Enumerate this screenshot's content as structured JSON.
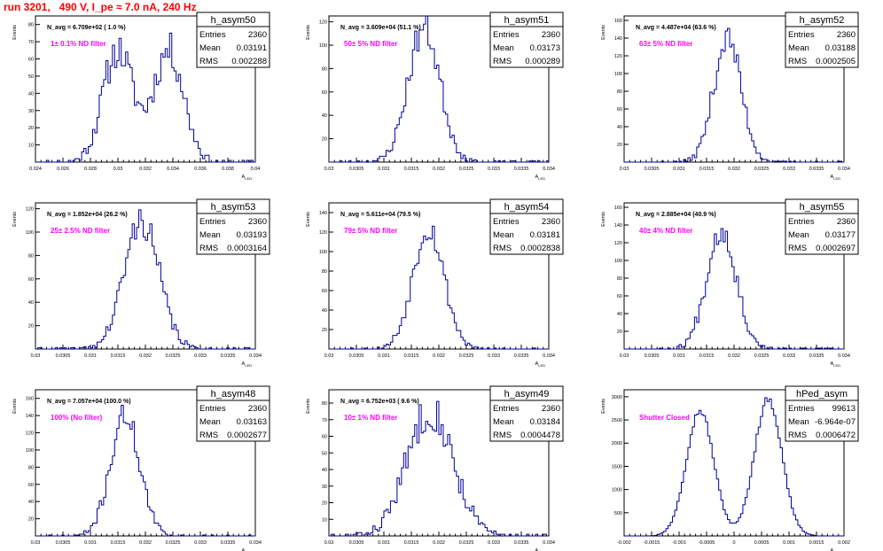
{
  "title": "run 3201,   490 V, I_pe ≈ 7.0 nA, 240 Hz",
  "colors": {
    "title": "#ff0000",
    "annotation": "#ff00ff",
    "histogram": "#000099",
    "axis": "#000000"
  },
  "chart_data": [
    {
      "type": "histogram",
      "name": "h_asym50",
      "entries": "2360",
      "mean": "0.03191",
      "rms": "0.002288",
      "navg": "N_avg = 6.709e+02 ( 1.0 %)",
      "note": "1± 0.1% ND filter",
      "ylabel": "Events",
      "xlabel": "A",
      "xlim": [
        0.024,
        0.04
      ],
      "ylim": [
        0,
        85
      ],
      "xticks": [
        "0.024",
        "0.026",
        "0.028",
        "0.03",
        "0.032",
        "0.034",
        "0.036",
        "0.038",
        "0.04"
      ],
      "yticks": [
        "10",
        "20",
        "30",
        "40",
        "50",
        "60",
        "70",
        "80"
      ],
      "peaks": [
        {
          "c": 0.03,
          "s": 0.0011,
          "a": 65
        },
        {
          "c": 0.0337,
          "s": 0.0011,
          "a": 65
        }
      ],
      "nbins": 100,
      "seed": 11
    },
    {
      "type": "histogram",
      "name": "h_asym51",
      "entries": "2360",
      "mean": "0.03173",
      "rms": "0.000289",
      "navg": "N_avg = 3.609e+04 (51.1 %)",
      "note": "50± 5% ND filter",
      "ylabel": "Events",
      "xlabel": "A",
      "xlim": [
        0.03,
        0.034
      ],
      "ylim": [
        0,
        125
      ],
      "xticks": [
        "0.03",
        "0.0305",
        "0.031",
        "0.0315",
        "0.032",
        "0.0325",
        "0.033",
        "0.0335",
        "0.034"
      ],
      "yticks": [
        "20",
        "40",
        "60",
        "80",
        "100",
        "120"
      ],
      "peaks": [
        {
          "c": 0.03173,
          "s": 0.000289,
          "a": 115
        }
      ],
      "nbins": 100,
      "seed": 23
    },
    {
      "type": "histogram",
      "name": "h_asym52",
      "entries": "2360",
      "mean": "0.03188",
      "rms": "0.0002505",
      "navg": "N_avg = 4.487e+04 (63.6 %)",
      "note": "63± 5% ND filter",
      "ylabel": "Events",
      "xlabel": "A",
      "xlim": [
        0.03,
        0.034
      ],
      "ylim": [
        0,
        165
      ],
      "xticks": [
        "0.03",
        "0.0305",
        "0.031",
        "0.0315",
        "0.032",
        "0.0325",
        "0.033",
        "0.0335",
        "0.034"
      ],
      "yticks": [
        "20",
        "40",
        "60",
        "80",
        "100",
        "120",
        "140",
        "160"
      ],
      "peaks": [
        {
          "c": 0.03188,
          "s": 0.00025,
          "a": 140
        }
      ],
      "nbins": 100,
      "seed": 37
    },
    {
      "type": "histogram",
      "name": "h_asym53",
      "entries": "2360",
      "mean": "0.03193",
      "rms": "0.0003164",
      "navg": "N_avg = 1.852e+04 (26.2 %)",
      "note": "25± 2.5% ND filter",
      "ylabel": "Events",
      "xlabel": "A",
      "xlim": [
        0.03,
        0.034
      ],
      "ylim": [
        0,
        125
      ],
      "xticks": [
        "0.03",
        "0.0305",
        "0.031",
        "0.0315",
        "0.032",
        "0.0325",
        "0.033",
        "0.0335",
        "0.034"
      ],
      "yticks": [
        "20",
        "40",
        "60",
        "80",
        "100",
        "120"
      ],
      "peaks": [
        {
          "c": 0.03193,
          "s": 0.000316,
          "a": 110
        }
      ],
      "nbins": 100,
      "seed": 41
    },
    {
      "type": "histogram",
      "name": "h_asym54",
      "entries": "2360",
      "mean": "0.03181",
      "rms": "0.0002838",
      "navg": "N_avg = 5.611e+04 (79.5 %)",
      "note": "79± 5% ND filter",
      "ylabel": "Events",
      "xlabel": "A",
      "xlim": [
        0.03,
        0.034
      ],
      "ylim": [
        0,
        150
      ],
      "xticks": [
        "0.03",
        "0.0305",
        "0.031",
        "0.0315",
        "0.032",
        "0.0325",
        "0.033",
        "0.0335",
        "0.034"
      ],
      "yticks": [
        "20",
        "40",
        "60",
        "80",
        "100",
        "120",
        "140"
      ],
      "peaks": [
        {
          "c": 0.03181,
          "s": 0.000284,
          "a": 125
        }
      ],
      "nbins": 100,
      "seed": 53
    },
    {
      "type": "histogram",
      "name": "h_asym55",
      "entries": "2360",
      "mean": "0.03177",
      "rms": "0.0002697",
      "navg": "N_avg = 2.885e+04 (40.9 %)",
      "note": "40± 4% ND filter",
      "ylabel": "Events",
      "xlabel": "A",
      "xlim": [
        0.03,
        0.034
      ],
      "ylim": [
        0,
        165
      ],
      "xticks": [
        "0.03",
        "0.0305",
        "0.031",
        "0.0315",
        "0.032",
        "0.0325",
        "0.033",
        "0.0335",
        "0.034"
      ],
      "yticks": [
        "20",
        "40",
        "60",
        "80",
        "100",
        "120",
        "140",
        "160"
      ],
      "peaks": [
        {
          "c": 0.03177,
          "s": 0.00027,
          "a": 135
        }
      ],
      "nbins": 100,
      "seed": 67
    },
    {
      "type": "histogram",
      "name": "h_asym48",
      "entries": "2360",
      "mean": "0.03163",
      "rms": "0.0002677",
      "navg": "N_avg = 7.057e+04 (100.0 %)",
      "note": "100% (No filter)",
      "ylabel": "Events",
      "xlabel": "A",
      "xlim": [
        0.03,
        0.034
      ],
      "ylim": [
        0,
        170
      ],
      "xticks": [
        "0.03",
        "0.0305",
        "0.031",
        "0.0315",
        "0.032",
        "0.0325",
        "0.033",
        "0.0335",
        "0.034"
      ],
      "yticks": [
        "20",
        "40",
        "60",
        "80",
        "100",
        "120",
        "140",
        "160"
      ],
      "peaks": [
        {
          "c": 0.03163,
          "s": 0.000268,
          "a": 140
        }
      ],
      "nbins": 100,
      "seed": 71
    },
    {
      "type": "histogram",
      "name": "h_asym49",
      "entries": "2360",
      "mean": "0.03184",
      "rms": "0.0004478",
      "navg": "N_avg = 6.752e+03 ( 9.6 %)",
      "note": "10± 1% ND filter",
      "ylabel": "Events",
      "xlabel": "A",
      "xlim": [
        0.03,
        0.034
      ],
      "ylim": [
        0,
        88
      ],
      "xticks": [
        "0.03",
        "0.0305",
        "0.031",
        "0.0315",
        "0.032",
        "0.0325",
        "0.033",
        "0.0335",
        "0.034"
      ],
      "yticks": [
        "10",
        "20",
        "30",
        "40",
        "50",
        "60",
        "70",
        "80"
      ],
      "peaks": [
        {
          "c": 0.03184,
          "s": 0.00042,
          "a": 76
        }
      ],
      "nbins": 100,
      "seed": 83
    },
    {
      "type": "histogram",
      "name": "hPed_asym",
      "entries": "99613",
      "mean": "-6.964e-07",
      "rms": "0.0006472",
      "navg": "",
      "note": "Shutter Closed",
      "ylabel": "Events",
      "xlabel": "A",
      "xlim": [
        -0.002,
        0.002
      ],
      "ylim": [
        0,
        3150
      ],
      "xticks": [
        "-0.002",
        "-0.0015",
        "-0.001",
        "-0.0005",
        "0",
        "0.0005",
        "0.001",
        "0.0015",
        "0.002"
      ],
      "yticks": [
        "500",
        "1000",
        "1500",
        "2000",
        "2500",
        "3000"
      ],
      "peaks": [
        {
          "c": -0.00062,
          "s": 0.00025,
          "a": 2700
        },
        {
          "c": 0.00062,
          "s": 0.00025,
          "a": 2950
        }
      ],
      "nbins": 100,
      "seed": 97
    }
  ]
}
